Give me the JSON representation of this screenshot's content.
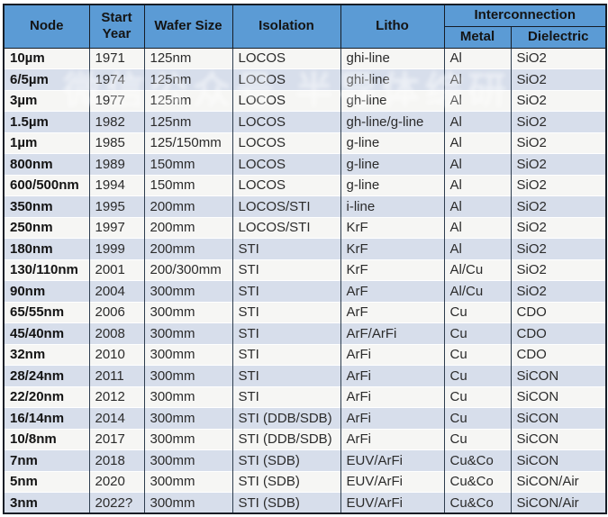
{
  "table": {
    "header": {
      "node": "Node",
      "start_year": "Start Year",
      "wafer_size": "Wafer Size",
      "isolation": "Isolation",
      "litho": "Litho",
      "interconnection": "Interconnection",
      "metal": "Metal",
      "dielectric": "Dielectric"
    },
    "rows": [
      {
        "node": "10µm",
        "start_year": "1971",
        "wafer_size": "125nm",
        "isolation": "LOCOS",
        "litho": "ghi-line",
        "metal": "Al",
        "dielectric": "SiO2"
      },
      {
        "node": "6/5µm",
        "start_year": "1974",
        "wafer_size": "125nm",
        "isolation": "LOCOS",
        "litho": "ghi-line",
        "metal": "Al",
        "dielectric": "SiO2"
      },
      {
        "node": "3µm",
        "start_year": "1977",
        "wafer_size": "125nm",
        "isolation": "LOCOS",
        "litho": "gh-line",
        "metal": "Al",
        "dielectric": "SiO2"
      },
      {
        "node": "1.5µm",
        "start_year": "1982",
        "wafer_size": "125nm",
        "isolation": "LOCOS",
        "litho": "gh-line/g-line",
        "metal": "Al",
        "dielectric": "SiO2"
      },
      {
        "node": "1µm",
        "start_year": "1985",
        "wafer_size": "125/150mm",
        "isolation": "LOCOS",
        "litho": "g-line",
        "metal": "Al",
        "dielectric": "SiO2"
      },
      {
        "node": "800nm",
        "start_year": "1989",
        "wafer_size": "150mm",
        "isolation": "LOCOS",
        "litho": "g-line",
        "metal": "Al",
        "dielectric": "SiO2"
      },
      {
        "node": "600/500nm",
        "start_year": "1994",
        "wafer_size": "150mm",
        "isolation": "LOCOS",
        "litho": "g-line",
        "metal": "Al",
        "dielectric": "SiO2"
      },
      {
        "node": "350nm",
        "start_year": "1995",
        "wafer_size": "200mm",
        "isolation": "LOCOS/STI",
        "litho": "i-line",
        "metal": "Al",
        "dielectric": "SiO2"
      },
      {
        "node": "250nm",
        "start_year": "1997",
        "wafer_size": "200mm",
        "isolation": "LOCOS/STI",
        "litho": "KrF",
        "metal": "Al",
        "dielectric": "SiO2"
      },
      {
        "node": "180nm",
        "start_year": "1999",
        "wafer_size": "200mm",
        "isolation": "STI",
        "litho": "KrF",
        "metal": "Al",
        "dielectric": "SiO2"
      },
      {
        "node": "130/110nm",
        "start_year": "2001",
        "wafer_size": "200/300mm",
        "isolation": "STI",
        "litho": "KrF",
        "metal": "Al/Cu",
        "dielectric": "SiO2"
      },
      {
        "node": "90nm",
        "start_year": "2004",
        "wafer_size": "300mm",
        "isolation": "STI",
        "litho": "ArF",
        "metal": "Al/Cu",
        "dielectric": "SiO2"
      },
      {
        "node": "65/55nm",
        "start_year": "2006",
        "wafer_size": "300mm",
        "isolation": "STI",
        "litho": "ArF",
        "metal": "Cu",
        "dielectric": "CDO"
      },
      {
        "node": "45/40nm",
        "start_year": "2008",
        "wafer_size": "300mm",
        "isolation": "STI",
        "litho": "ArF/ArFi",
        "metal": "Cu",
        "dielectric": "CDO"
      },
      {
        "node": "32nm",
        "start_year": "2010",
        "wafer_size": "300mm",
        "isolation": "STI",
        "litho": "ArFi",
        "metal": "Cu",
        "dielectric": "CDO"
      },
      {
        "node": "28/24nm",
        "start_year": "2011",
        "wafer_size": "300mm",
        "isolation": "STI",
        "litho": "ArFi",
        "metal": "Cu",
        "dielectric": "SiCON"
      },
      {
        "node": "22/20nm",
        "start_year": "2012",
        "wafer_size": "300mm",
        "isolation": "STI",
        "litho": "ArFi",
        "metal": "Cu",
        "dielectric": "SiCON"
      },
      {
        "node": "16/14nm",
        "start_year": "2014",
        "wafer_size": "300mm",
        "isolation": "STI (DDB/SDB)",
        "litho": "ArFi",
        "metal": "Cu",
        "dielectric": "SiCON"
      },
      {
        "node": "10/8nm",
        "start_year": "2017",
        "wafer_size": "300mm",
        "isolation": "STI (DDB/SDB)",
        "litho": "ArFi",
        "metal": "Cu",
        "dielectric": "SiCON"
      },
      {
        "node": "7nm",
        "start_year": "2018",
        "wafer_size": "300mm",
        "isolation": "STI (SDB)",
        "litho": "EUV/ArFi",
        "metal": "Cu&Co",
        "dielectric": "SiCON"
      },
      {
        "node": "5nm",
        "start_year": "2020",
        "wafer_size": "300mm",
        "isolation": "STI (SDB)",
        "litho": "EUV/ArFi",
        "metal": "Cu&Co",
        "dielectric": "SiCON/Air"
      },
      {
        "node": "3nm",
        "start_year": "2022?",
        "wafer_size": "300mm",
        "isolation": "STI (SDB)",
        "litho": "EUV/ArFi",
        "metal": "Cu&Co",
        "dielectric": "SiCON/Air"
      }
    ]
  },
  "watermark": {
    "text": "微信公众号 半导体综研"
  },
  "colors": {
    "header_bg": "#5b9bd5",
    "row_stripe": "#d7deeb",
    "row_white": "#f6f6f4",
    "border_outer": "#161d26",
    "border_inner": "#2e3d4e"
  }
}
